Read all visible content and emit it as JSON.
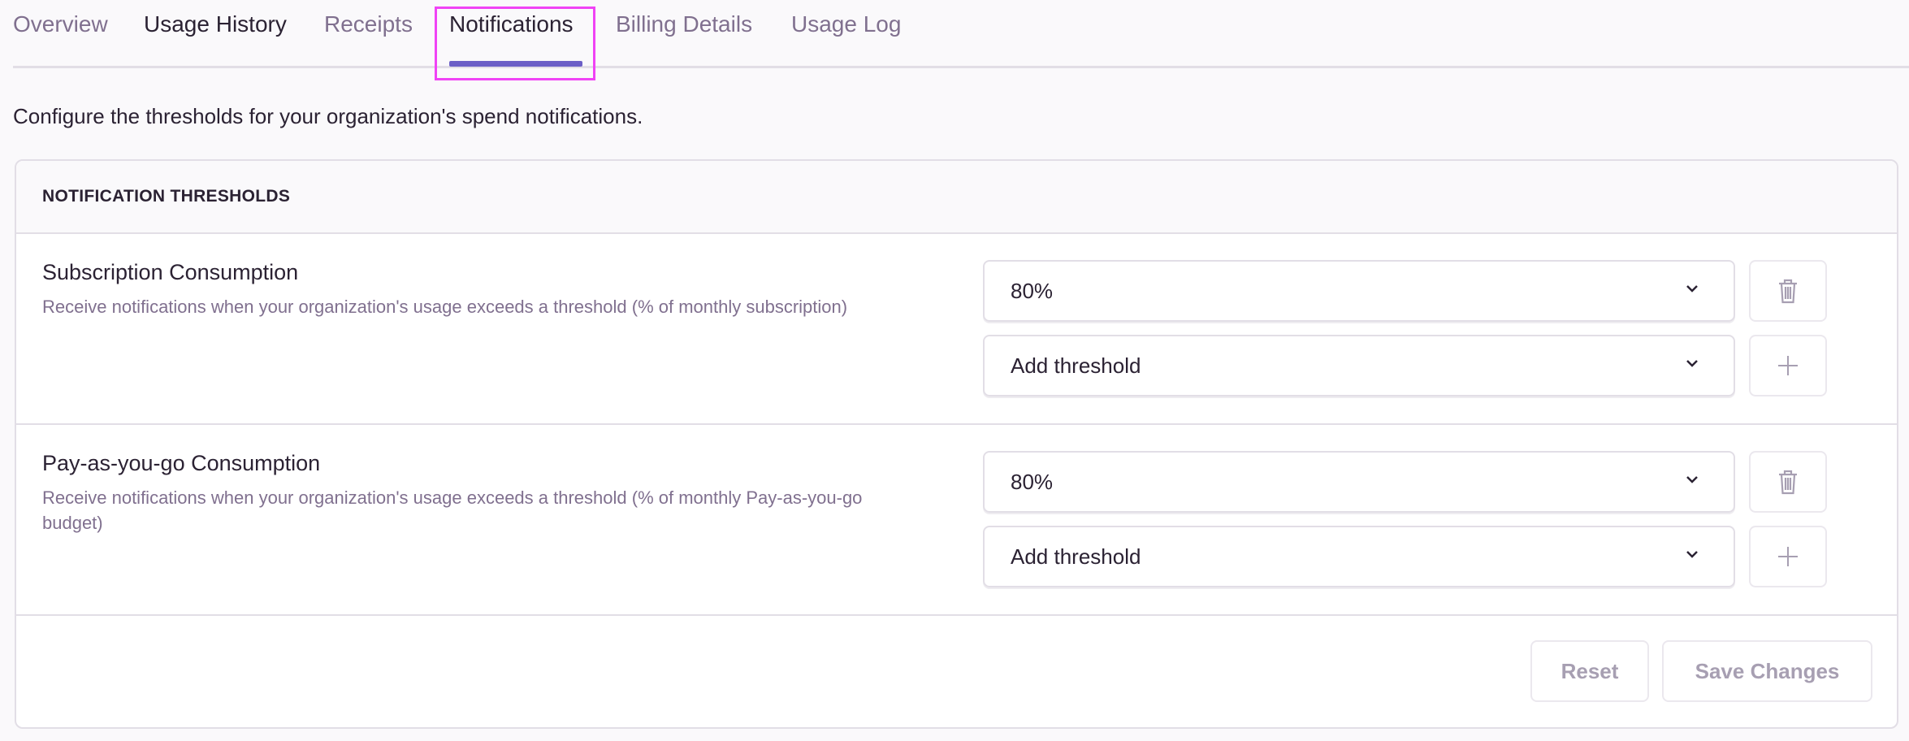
{
  "tabs": [
    "Overview",
    "Usage History",
    "Receipts",
    "Notifications",
    "Billing Details",
    "Usage Log"
  ],
  "active_tab": "Notifications",
  "description": "Configure the thresholds for your organization's spend notifications.",
  "panel": {
    "header": "NOTIFICATION THRESHOLDS",
    "rows": [
      {
        "title": "Subscription Consumption",
        "description": "Receive notifications when your organization's usage exceeds a threshold (% of monthly subscription)",
        "threshold": "80%",
        "add_placeholder": "Add threshold"
      },
      {
        "title": "Pay-as-you-go Consumption",
        "description": "Receive notifications when your organization's usage exceeds a threshold (% of monthly Pay-as-you-go budget)",
        "threshold": "80%",
        "add_placeholder": "Add threshold"
      }
    ],
    "reset_label": "Reset",
    "save_label": "Save Changes"
  },
  "colors": {
    "accent": "#6c5fc7",
    "highlight": "#f043f5",
    "muted": "#80708f"
  }
}
